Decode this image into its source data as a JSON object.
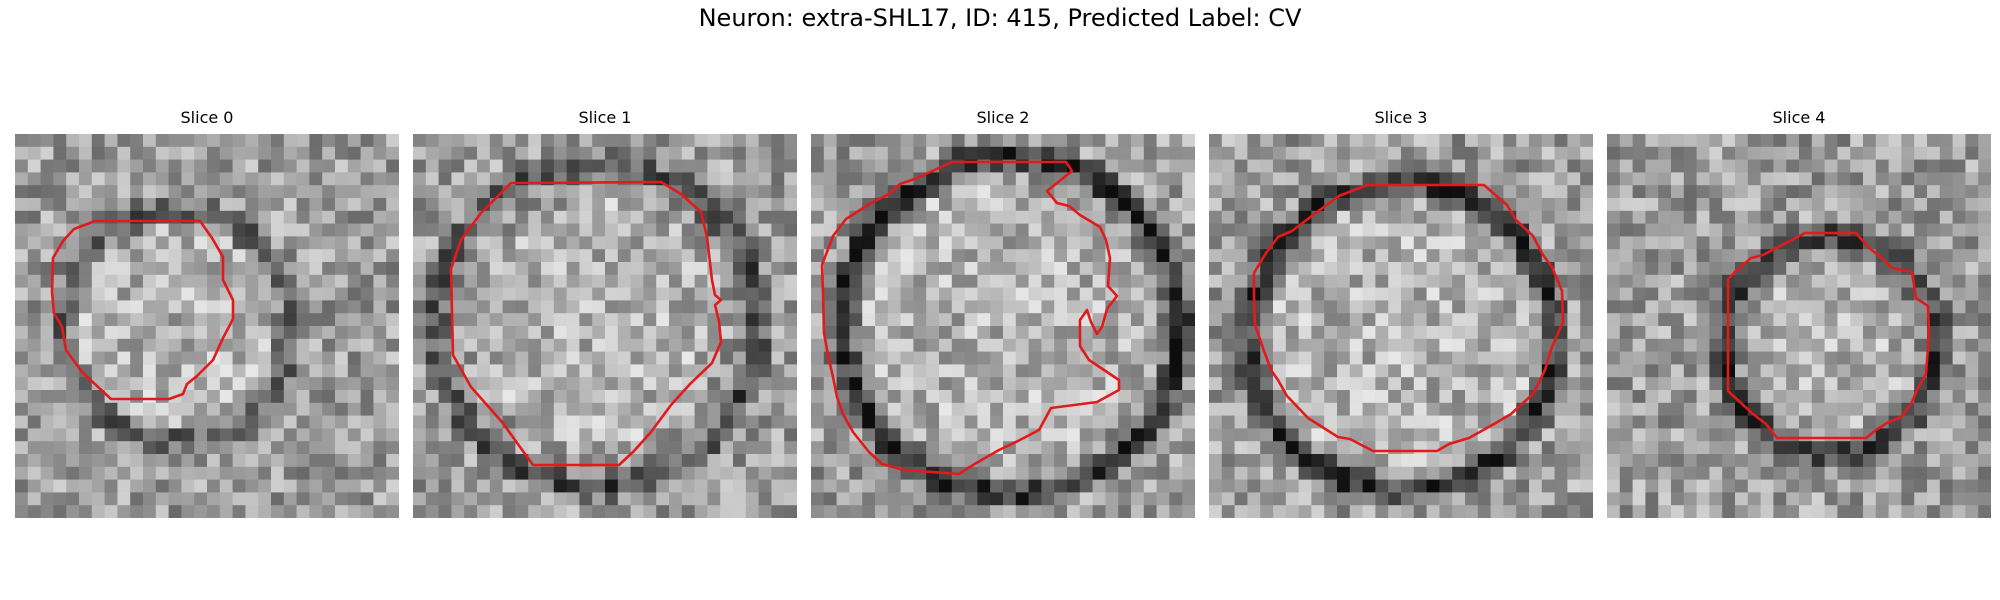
{
  "figure": {
    "title": "Neuron: extra-SHL17, ID: 415, Predicted Label: CV",
    "outline_color": "#e31a1c",
    "colormap": "grayscale",
    "panels": [
      {
        "label": "Slice 0",
        "seed": 11
      },
      {
        "label": "Slice 1",
        "seed": 23
      },
      {
        "label": "Slice 2",
        "seed": 37
      },
      {
        "label": "Slice 3",
        "seed": 41
      },
      {
        "label": "Slice 4",
        "seed": 59
      }
    ]
  }
}
